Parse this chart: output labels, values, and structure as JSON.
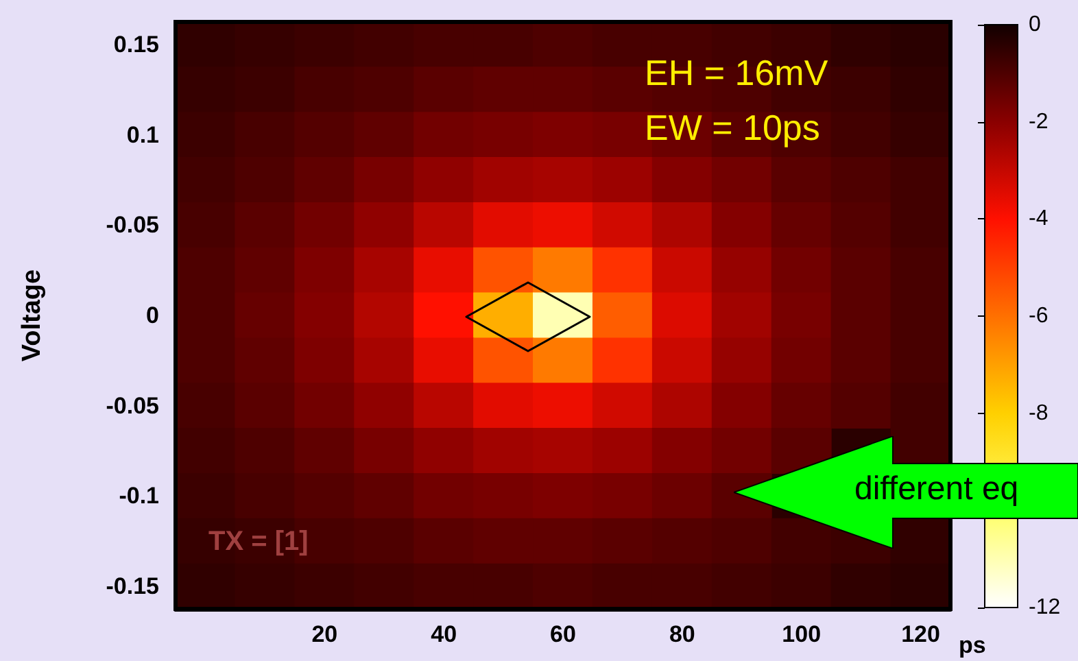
{
  "chart_data": {
    "type": "heatmap",
    "ylabel": "Voltage",
    "xlabel": "ps",
    "annotations": [
      "EH = 16mV",
      "EW = 10ps",
      "TX = [1]",
      "different eq"
    ],
    "clim": [
      -12,
      0
    ],
    "cticks": [
      0,
      -2,
      -4,
      -6,
      -8,
      -12
    ],
    "categories": [
      null,
      null,
      "20",
      null,
      "40",
      null,
      "60",
      null,
      "80",
      null,
      "100",
      null,
      "120"
    ],
    "y_categories": [
      "0.15",
      null,
      "0.1",
      null,
      "-0.05",
      null,
      "0",
      null,
      "-0.05",
      null,
      "-0.1",
      null,
      "-0.15"
    ],
    "cells": [
      [
        -0.5,
        -0.6,
        -0.7,
        -0.8,
        -0.9,
        -0.9,
        -1,
        -0.9,
        -0.9,
        -0.8,
        -0.7,
        -0.5,
        -0.4
      ],
      [
        -0.6,
        -0.7,
        -0.9,
        -1,
        -1.2,
        -1.3,
        -1.3,
        -1.2,
        -1.1,
        -1,
        -0.8,
        -0.7,
        -0.5
      ],
      [
        -0.7,
        -0.9,
        -1.1,
        -1.3,
        -1.6,
        -1.7,
        -1.8,
        -1.7,
        -1.5,
        -1.2,
        -1,
        -0.8,
        -0.6
      ],
      [
        -0.8,
        -1,
        -1.3,
        -1.7,
        -2.1,
        -2.4,
        -2.5,
        -2.3,
        -1.9,
        -1.6,
        -1.2,
        -1,
        -0.8
      ],
      [
        -0.9,
        -1.2,
        -1.6,
        -2.1,
        -2.8,
        -3.5,
        -3.7,
        -3.2,
        -2.6,
        -1.9,
        -1.4,
        -1.1,
        -0.8
      ],
      [
        -1,
        -1.3,
        -1.8,
        -2.5,
        -3.6,
        -5.4,
        -6.2,
        -4.7,
        -3.1,
        -2.2,
        -1.6,
        -1.2,
        -0.9
      ],
      [
        -1,
        -1.4,
        -1.9,
        -2.7,
        -4,
        -7.3,
        -11,
        -5.6,
        -3.4,
        -2.4,
        -1.7,
        -1.2,
        -0.9
      ],
      [
        -1,
        -1.3,
        -1.8,
        -2.5,
        -3.6,
        -5.4,
        -6.2,
        -4.7,
        -3.1,
        -2.2,
        -1.6,
        -1.2,
        -0.9
      ],
      [
        -0.9,
        -1.2,
        -1.6,
        -2.1,
        -2.8,
        -3.5,
        -3.7,
        -3.2,
        -2.6,
        -1.9,
        -1.4,
        -1.1,
        -0.8
      ],
      [
        -0.8,
        -1,
        -1.3,
        -1.7,
        -2.1,
        -2.4,
        -2.5,
        -2.3,
        -1.9,
        -1.6,
        -1.2,
        null,
        -0.8
      ],
      [
        -0.7,
        -0.9,
        -1.1,
        -1.3,
        -1.6,
        -1.7,
        -1.8,
        -1.7,
        -1.5,
        -1.2,
        null,
        null,
        null
      ],
      [
        -0.6,
        -0.7,
        -0.9,
        -1,
        -1.2,
        -1.3,
        -1.3,
        -1.2,
        -1.1,
        -1,
        -0.8,
        -0.7,
        -0.5
      ],
      [
        -0.5,
        -0.6,
        -0.7,
        -0.8,
        -0.9,
        -0.9,
        -1,
        -0.9,
        -0.9,
        -0.8,
        -0.7,
        -0.5,
        -0.4
      ]
    ]
  }
}
